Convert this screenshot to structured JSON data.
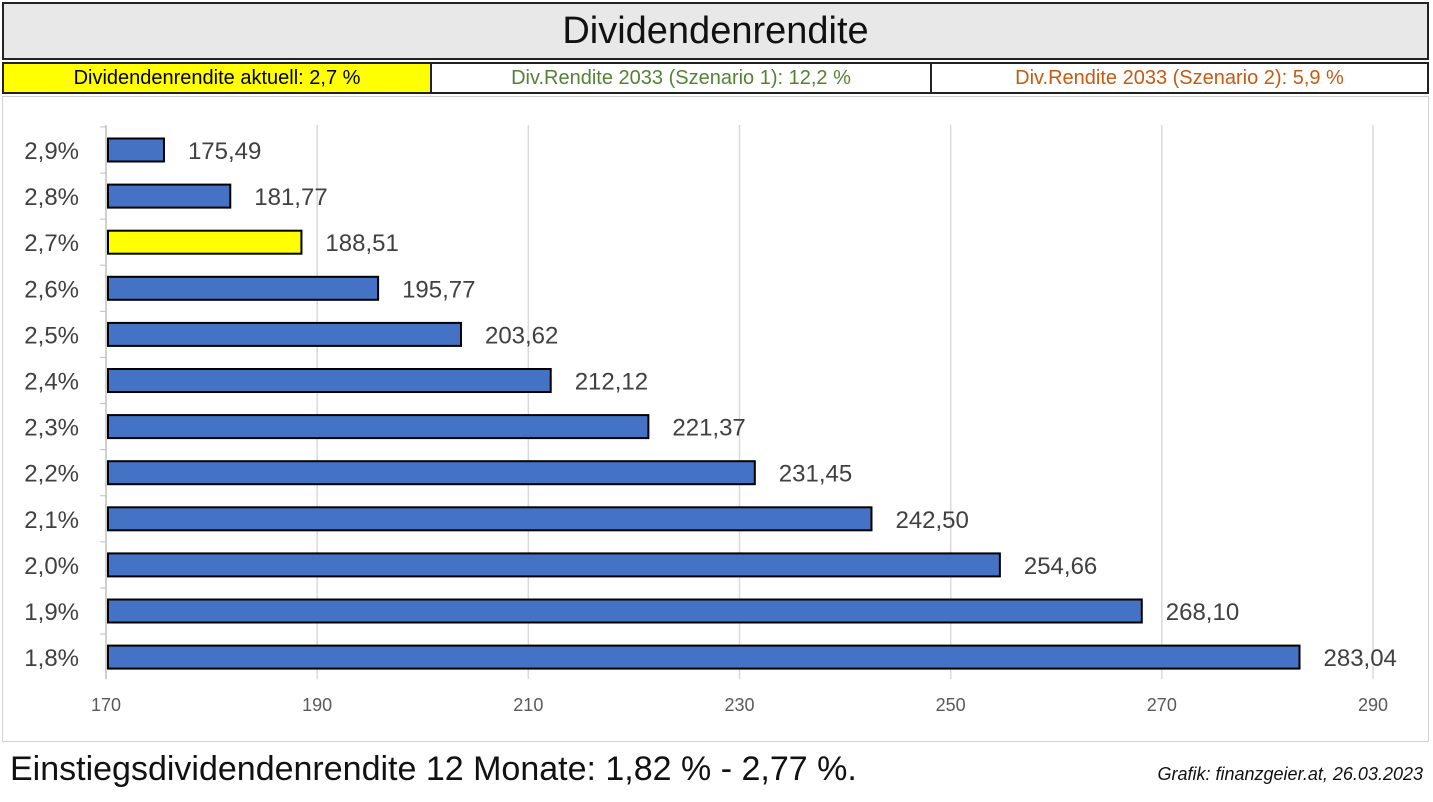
{
  "header": {
    "title": "Dividendenrendite",
    "current": "Dividendenrendite aktuell: 2,7 %",
    "scenario1": "Div.Rendite 2033 (Szenario 1): 12,2 %",
    "scenario2": "Div.Rendite 2033 (Szenario 2): 5,9 %"
  },
  "colors": {
    "bar": "#4472c4",
    "highlight_bar": "#ffff00",
    "current_bg": "#ffff00",
    "scenario1_text": "#548235",
    "scenario2_text": "#c55a11",
    "grid": "#d9d9d9"
  },
  "chart_data": {
    "type": "bar",
    "orientation": "horizontal",
    "categories": [
      "2,9%",
      "2,8%",
      "2,7%",
      "2,6%",
      "2,5%",
      "2,4%",
      "2,3%",
      "2,2%",
      "2,1%",
      "2,0%",
      "1,9%",
      "1,8%"
    ],
    "values": [
      175.49,
      181.77,
      188.51,
      195.77,
      203.62,
      212.12,
      221.37,
      231.45,
      242.5,
      254.66,
      268.1,
      283.04
    ],
    "value_labels": [
      "175,49",
      "181,77",
      "188,51",
      "195,77",
      "203,62",
      "212,12",
      "221,37",
      "231,45",
      "242,50",
      "254,66",
      "268,10",
      "283,04"
    ],
    "highlight_category": "2,7%",
    "xlim": [
      170,
      290
    ],
    "xticks": [
      170,
      190,
      210,
      230,
      250,
      270,
      290
    ],
    "grid": true
  },
  "footer": {
    "summary": "Einstiegsdividendenrendite 12 Monate: 1,82 % - 2,77 %.",
    "credit": "Grafik: finanzgeier.at, 26.03.2023"
  }
}
